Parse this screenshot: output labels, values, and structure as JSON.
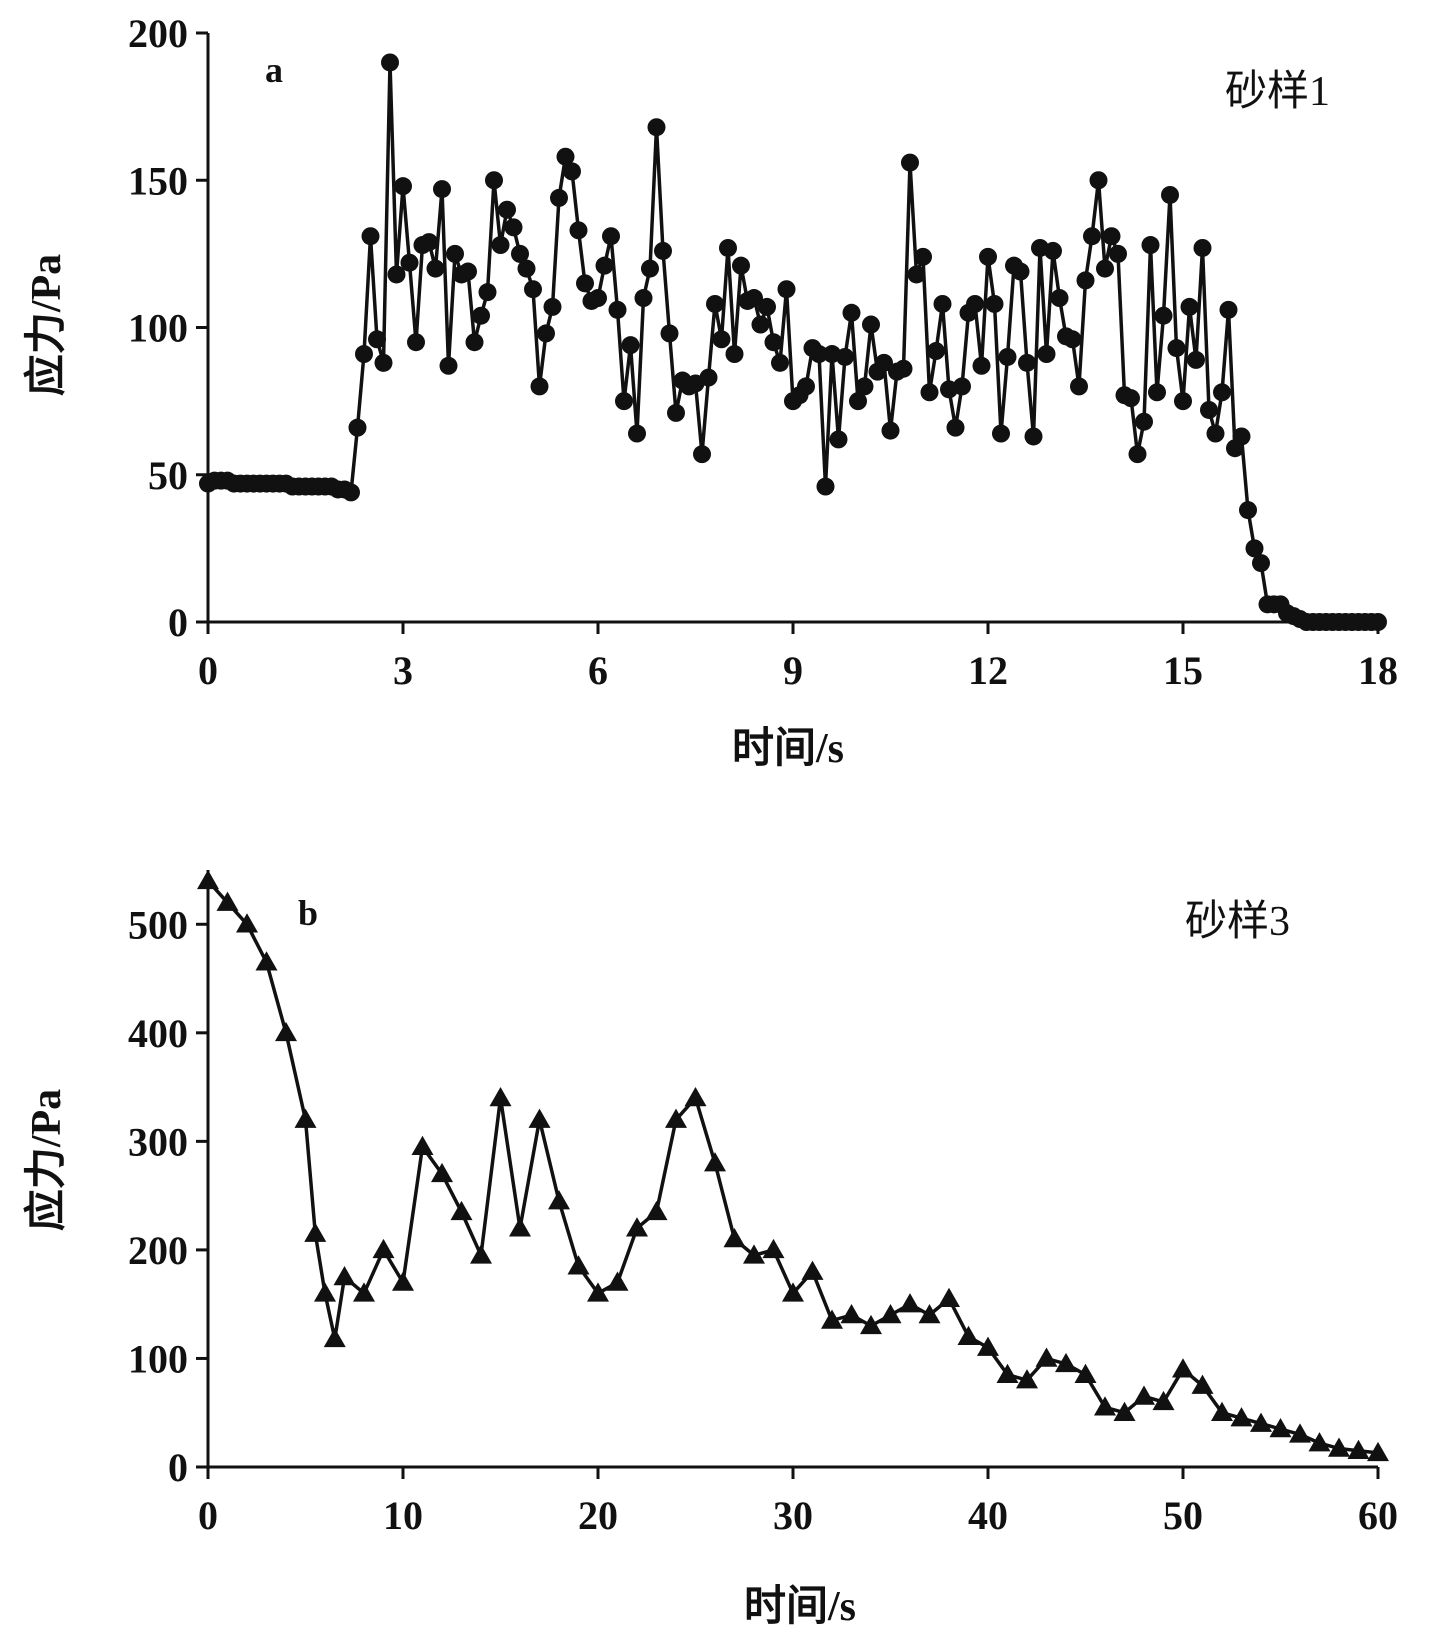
{
  "figure": {
    "colors": {
      "ink": "#111111",
      "background": "#ffffff"
    }
  },
  "chart_data": [
    {
      "type": "line",
      "panel_label": "a",
      "annotation": "砂样1",
      "xlabel": "时间/s",
      "ylabel": "应力/Pa",
      "xlim": [
        0,
        18
      ],
      "ylim": [
        0,
        200
      ],
      "x_ticks": [
        "0",
        "3",
        "6",
        "9",
        "12",
        "15",
        "18"
      ],
      "y_ticks": [
        "0",
        "50",
        "100",
        "150",
        "200"
      ],
      "marker": "circle",
      "grid": false,
      "legend": "none",
      "x": [
        0.0,
        0.1,
        0.2,
        0.3,
        0.4,
        0.5,
        0.6,
        0.7,
        0.8,
        0.9,
        1.0,
        1.1,
        1.2,
        1.3,
        1.4,
        1.5,
        1.6,
        1.7,
        1.8,
        1.9,
        2.0,
        2.1,
        2.2,
        2.3,
        2.4,
        2.5,
        2.6,
        2.7,
        2.8,
        2.9,
        3.0,
        3.1,
        3.2,
        3.3,
        3.4,
        3.5,
        3.6,
        3.7,
        3.8,
        3.9,
        4.0,
        4.1,
        4.2,
        4.3,
        4.4,
        4.5,
        4.6,
        4.7,
        4.8,
        4.9,
        5.0,
        5.1,
        5.2,
        5.3,
        5.4,
        5.5,
        5.6,
        5.7,
        5.8,
        5.9,
        6.0,
        6.1,
        6.2,
        6.3,
        6.4,
        6.5,
        6.6,
        6.7,
        6.8,
        6.9,
        7.0,
        7.1,
        7.2,
        7.3,
        7.4,
        7.5,
        7.6,
        7.7,
        7.8,
        7.9,
        8.0,
        8.1,
        8.2,
        8.3,
        8.4,
        8.5,
        8.6,
        8.7,
        8.8,
        8.9,
        9.0,
        9.1,
        9.2,
        9.3,
        9.4,
        9.5,
        9.6,
        9.7,
        9.8,
        9.9,
        10.0,
        10.1,
        10.2,
        10.3,
        10.4,
        10.5,
        10.6,
        10.7,
        10.8,
        10.9,
        11.0,
        11.1,
        11.2,
        11.3,
        11.4,
        11.5,
        11.6,
        11.7,
        11.8,
        11.9,
        12.0,
        12.1,
        12.2,
        12.3,
        12.4,
        12.5,
        12.6,
        12.7,
        12.8,
        12.9,
        13.0,
        13.1,
        13.2,
        13.3,
        13.4,
        13.5,
        13.6,
        13.7,
        13.8,
        13.9,
        14.0,
        14.1,
        14.2,
        14.3,
        14.4,
        14.5,
        14.6,
        14.7,
        14.8,
        14.9,
        15.0,
        15.1,
        15.2,
        15.3,
        15.4,
        15.5,
        15.6,
        15.7,
        15.8,
        15.9,
        16.0,
        16.1,
        16.2,
        16.3,
        16.4,
        16.5,
        16.6,
        16.7,
        16.8,
        16.9,
        17.0,
        17.1,
        17.2,
        17.3,
        17.4,
        17.5,
        17.6,
        17.7,
        17.8,
        17.9,
        18.0
      ],
      "y": [
        47,
        48,
        48,
        48,
        47,
        47,
        47,
        47,
        47,
        47,
        47,
        47,
        47,
        46,
        46,
        46,
        46,
        46,
        46,
        46,
        45,
        45,
        44,
        66,
        91,
        131,
        96,
        88,
        190,
        118,
        148,
        122,
        95,
        128,
        129,
        120,
        147,
        87,
        125,
        118,
        119,
        95,
        104,
        112,
        150,
        128,
        140,
        134,
        125,
        120,
        113,
        80,
        98,
        107,
        144,
        158,
        153,
        133,
        115,
        109,
        110,
        121,
        131,
        106,
        75,
        94,
        64,
        110,
        120,
        168,
        126,
        98,
        71,
        82,
        80,
        81,
        57,
        83,
        108,
        96,
        127,
        91,
        121,
        109,
        110,
        101,
        107,
        95,
        88,
        113,
        75,
        77,
        80,
        93,
        91,
        46,
        91,
        62,
        90,
        105,
        75,
        80,
        101,
        85,
        88,
        65,
        85,
        86,
        156,
        118,
        124,
        78,
        92,
        108,
        79,
        66,
        80,
        105,
        108,
        87,
        124,
        108,
        64,
        90,
        121,
        119,
        88,
        63,
        127,
        91,
        126,
        110,
        97,
        96,
        80,
        116,
        131,
        150,
        120,
        131,
        125,
        77,
        76,
        57,
        68,
        128,
        78,
        104,
        145,
        93,
        75,
        107,
        89,
        127,
        72,
        64,
        78,
        106,
        59,
        63,
        38,
        25,
        20,
        6,
        6,
        6,
        3,
        2,
        1,
        0,
        0,
        0,
        0,
        0,
        0,
        0,
        0,
        0,
        0,
        0,
        0
      ]
    },
    {
      "type": "line",
      "panel_label": "b",
      "annotation": "砂样3",
      "xlabel": "时间/s",
      "ylabel": "应力/Pa",
      "xlim": [
        0,
        60
      ],
      "ylim": [
        0,
        550
      ],
      "x_ticks": [
        "0",
        "10",
        "20",
        "30",
        "40",
        "50",
        "60"
      ],
      "y_ticks": [
        "0",
        "100",
        "200",
        "300",
        "400",
        "500"
      ],
      "marker": "triangle",
      "grid": false,
      "legend": "none",
      "x": [
        0,
        1,
        2,
        3,
        4,
        5,
        5.5,
        6,
        6.5,
        7,
        8,
        9,
        10,
        11,
        12,
        13,
        14,
        15,
        16,
        17,
        18,
        19,
        20,
        21,
        22,
        23,
        24,
        25,
        26,
        27,
        28,
        29,
        30,
        31,
        32,
        33,
        34,
        35,
        36,
        37,
        38,
        39,
        40,
        41,
        42,
        43,
        44,
        45,
        46,
        47,
        48,
        49,
        50,
        51,
        52,
        53,
        54,
        55,
        56,
        57,
        58,
        59,
        60
      ],
      "y": [
        540,
        520,
        500,
        465,
        400,
        320,
        215,
        160,
        118,
        175,
        160,
        200,
        170,
        295,
        270,
        235,
        195,
        340,
        220,
        320,
        245,
        185,
        160,
        170,
        220,
        235,
        320,
        340,
        280,
        210,
        195,
        200,
        160,
        180,
        135,
        140,
        130,
        140,
        150,
        140,
        155,
        120,
        110,
        85,
        80,
        100,
        95,
        85,
        55,
        50,
        65,
        60,
        90,
        75,
        50,
        45,
        40,
        35,
        30,
        22,
        17,
        15,
        13
      ]
    }
  ]
}
